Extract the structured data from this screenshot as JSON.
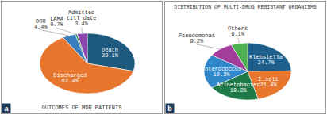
{
  "chart_data": [
    {
      "type": "pie",
      "title": "OUTCOMES OF MDR PATIENTS",
      "annotations": [
        "a"
      ],
      "categories": [
        "Death",
        "Discharged",
        "DOR",
        "LAMA",
        "Admitted till date"
      ],
      "values": [
        29.1,
        62.4,
        4.4,
        0.7,
        3.4
      ],
      "value_labels": [
        "29.1%",
        "62.4%",
        "4.4%",
        "0.7%",
        "3.4%"
      ],
      "colors": [
        "#1e5a7e",
        "#e8762c",
        "#3a7dbf",
        "#2e8b57",
        "#8e44ad"
      ],
      "data_labels": true
    },
    {
      "type": "pie",
      "title": "DISTRIBUTION OF MULTI-DRUG RESISTANT ORGANISMS",
      "annotations": [
        "b"
      ],
      "categories": [
        "Klebsiella",
        "E.coli",
        "Acinetobacter",
        "Enterococcus",
        "Pseudomonas",
        "Others"
      ],
      "values": [
        24.7,
        21.4,
        19.3,
        19.3,
        9.2,
        6.1
      ],
      "value_labels": [
        "24.7%",
        "21.4%",
        "19.3%",
        "19.3%",
        "9.2%",
        "6.1%"
      ],
      "colors": [
        "#1d5f8a",
        "#e8762c",
        "#1e7a46",
        "#2f86c8",
        "#a23d9b",
        "#4caf50"
      ],
      "data_labels": true
    }
  ]
}
